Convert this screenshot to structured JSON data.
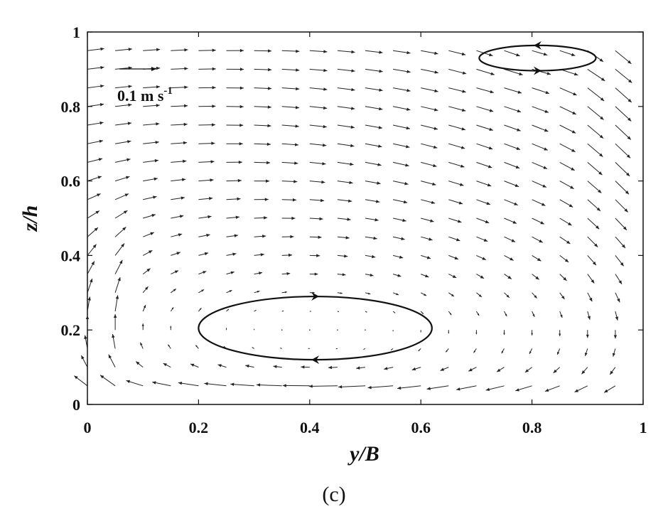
{
  "chart_data": {
    "type": "quiver",
    "xlabel": "y/B",
    "ylabel": "z/h",
    "xlim": [
      0,
      1
    ],
    "ylim": [
      0,
      1
    ],
    "xticks": [
      "0",
      "0.2",
      "0.4",
      "0.6",
      "0.8",
      "1"
    ],
    "yticks": [
      "0",
      "0.2",
      "0.4",
      "0.6",
      "0.8",
      "1"
    ],
    "grid": false,
    "reference_vector": {
      "magnitude": 0.1,
      "label": "0.1 m s",
      "unit_exponent": "-1"
    },
    "vector_field": {
      "y_positions": [
        0.0,
        0.05,
        0.1,
        0.15,
        0.2,
        0.25,
        0.3,
        0.35,
        0.4,
        0.45,
        0.5,
        0.55,
        0.6,
        0.65,
        0.7,
        0.75,
        0.8,
        0.85,
        0.9,
        0.95
      ],
      "z_positions": [
        0.05,
        0.1,
        0.15,
        0.2,
        0.25,
        0.3,
        0.35,
        0.4,
        0.45,
        0.5,
        0.55,
        0.6,
        0.65,
        0.7,
        0.75,
        0.8,
        0.85,
        0.9,
        0.95
      ],
      "main_vortex_center": [
        0.42,
        0.2
      ],
      "secondary_vortex_center": [
        0.8,
        0.93
      ]
    },
    "circulation_cells": [
      {
        "center": [
          0.41,
          0.205
        ],
        "semi_axes": [
          0.21,
          0.085
        ],
        "direction": "clockwise"
      },
      {
        "center": [
          0.81,
          0.93
        ],
        "semi_axes": [
          0.105,
          0.034
        ],
        "direction": "counterclockwise"
      }
    ],
    "panel_label": "(c)"
  }
}
